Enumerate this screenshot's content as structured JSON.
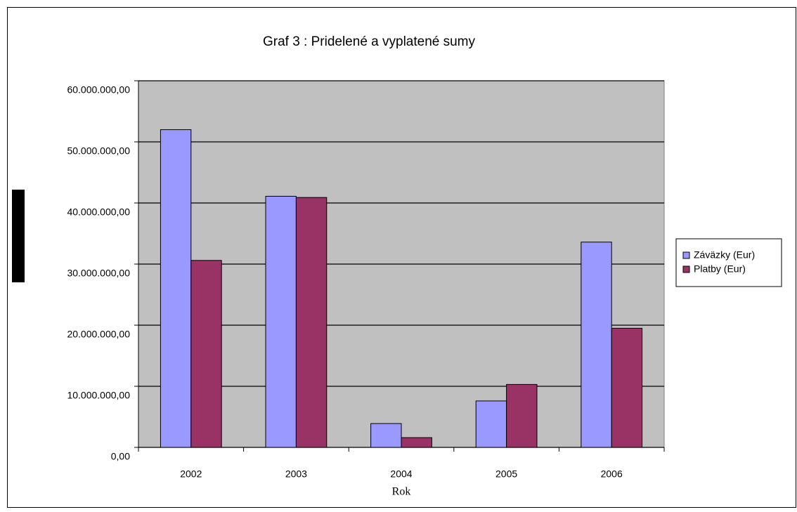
{
  "chart_data": {
    "type": "bar",
    "title": "Graf 3 : Pridelené a vyplatené sumy",
    "x_label": "Rok",
    "categories": [
      "2002",
      "2003",
      "2004",
      "2005",
      "2006"
    ],
    "series": [
      {
        "name": "Záväzky (Eur)",
        "color": "#9999ff",
        "values": [
          52000000,
          41100000,
          3900000,
          7600000,
          33600000
        ]
      },
      {
        "name": "Platby (Eur)",
        "color": "#993366",
        "values": [
          30600000,
          40900000,
          1600000,
          10300000,
          19500000
        ]
      }
    ],
    "ylim": [
      0,
      60000000
    ],
    "yticks": [
      {
        "value": 0,
        "label": "0,00"
      },
      {
        "value": 10000000,
        "label": "10.000.000,00"
      },
      {
        "value": 20000000,
        "label": "20.000.000,00"
      },
      {
        "value": 30000000,
        "label": "30.000.000,00"
      },
      {
        "value": 40000000,
        "label": "40.000.000,00"
      },
      {
        "value": 50000000,
        "label": "50.000.000,00"
      },
      {
        "value": 60000000,
        "label": "60.000.000,00"
      }
    ],
    "grid": true,
    "legend": "right",
    "plot_background": "#c0c0c0"
  }
}
